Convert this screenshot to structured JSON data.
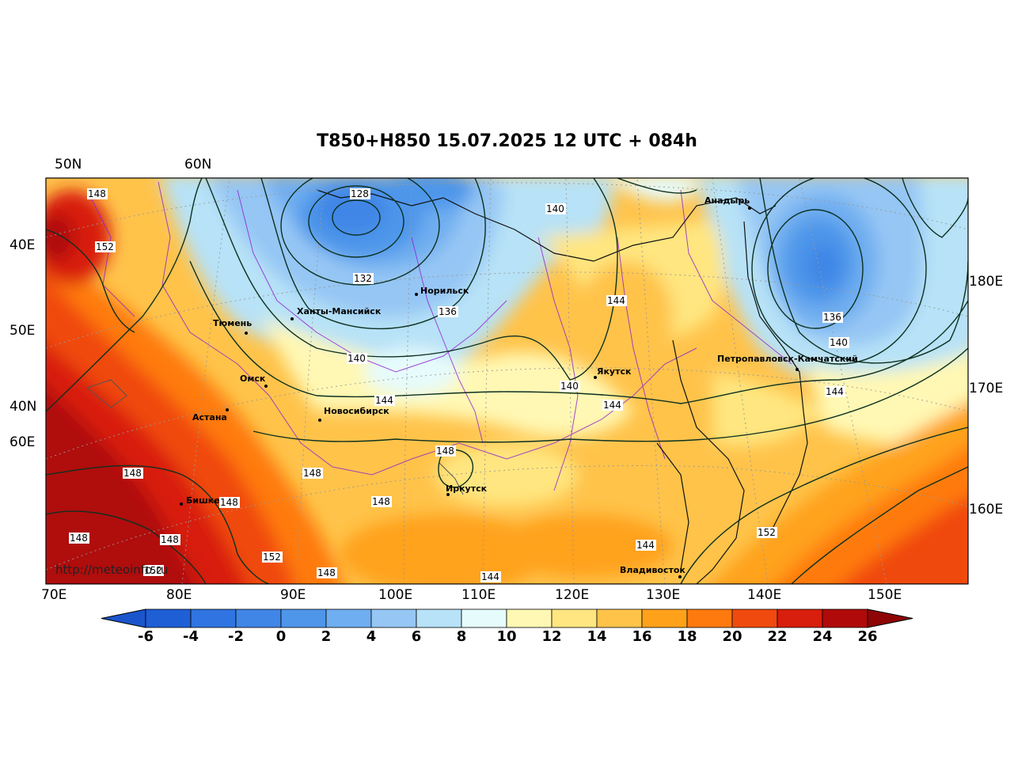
{
  "title": "T850+H850 15.07.2025 12 UTC + 084h",
  "watermark": "http://meteoinfo.ru",
  "top_labels": [
    "50N",
    "60N"
  ],
  "left_labels": [
    "40E",
    "50E",
    "40N",
    "60E"
  ],
  "right_labels": [
    "180E",
    "170E",
    "160E"
  ],
  "bottom_labels": [
    "70E",
    "80E",
    "90E",
    "100E",
    "110E",
    "120E",
    "130E",
    "140E",
    "150E"
  ],
  "colorbar": {
    "ticks": [
      "-6",
      "-4",
      "-2",
      "0",
      "2",
      "4",
      "6",
      "8",
      "10",
      "12",
      "14",
      "16",
      "18",
      "20",
      "22",
      "24",
      "26"
    ],
    "colors": [
      "#1e5fd6",
      "#2f74e0",
      "#3f86e6",
      "#4e96ea",
      "#6faef0",
      "#95c6f4",
      "#b7e2f7",
      "#e6fbfb",
      "#fff8b4",
      "#ffe680",
      "#ffc34a",
      "#ffa21a",
      "#ff7a0e",
      "#f04a0e",
      "#d81e0c",
      "#b00a0a"
    ],
    "under_color": "#1a55cc",
    "over_color": "#8f0505"
  },
  "cities": [
    {
      "name": "Анадырь"
    },
    {
      "name": "Норильск"
    },
    {
      "name": "Ханты-Мансийск"
    },
    {
      "name": "Тюмень"
    },
    {
      "name": "Якутск"
    },
    {
      "name": "Петропавловск-Камчатский"
    },
    {
      "name": "Омск"
    },
    {
      "name": "Новосибирск"
    },
    {
      "name": "Астана"
    },
    {
      "name": "Иркутск"
    },
    {
      "name": "Бишкек"
    },
    {
      "name": "Владивосток"
    }
  ],
  "contour_labels": [
    "148",
    "152",
    "128",
    "132",
    "136",
    "140",
    "144",
    "140",
    "144",
    "140",
    "144",
    "136",
    "140",
    "144",
    "144",
    "148",
    "148",
    "148",
    "148",
    "148",
    "148",
    "148",
    "152",
    "152",
    "148",
    "144",
    "144",
    "152"
  ]
}
